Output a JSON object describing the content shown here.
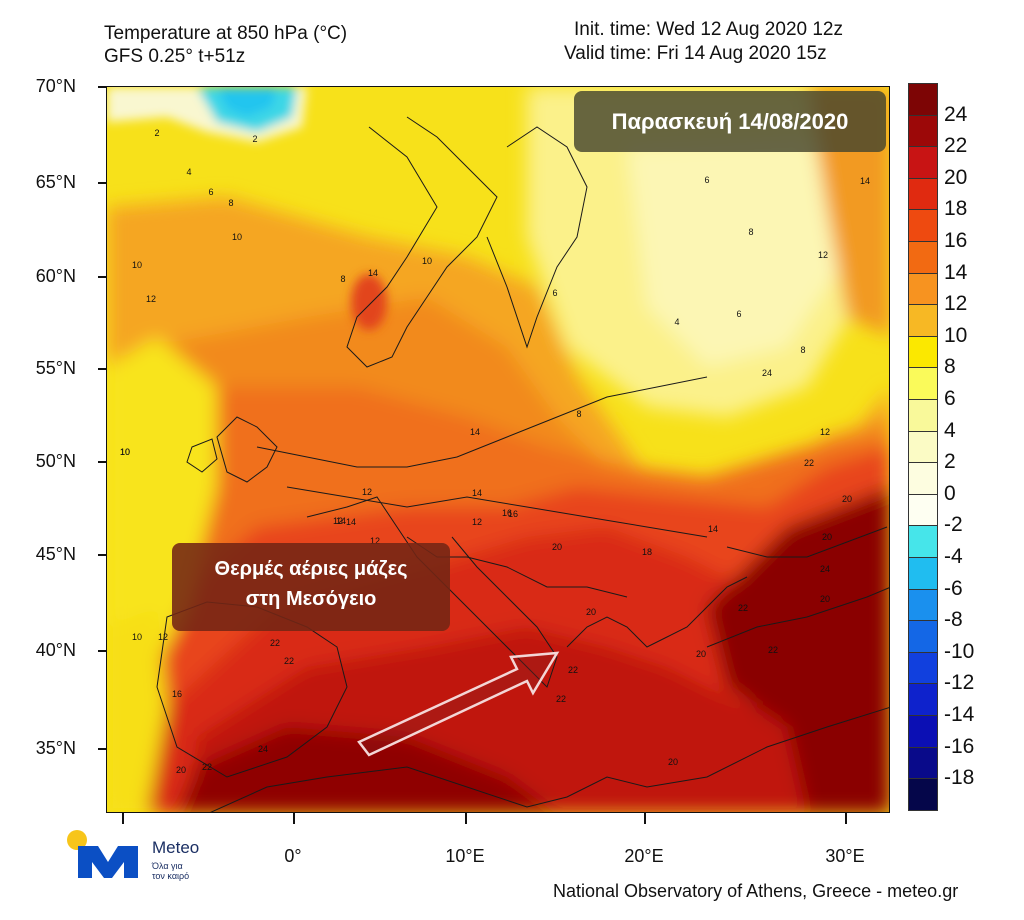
{
  "header": {
    "title": "Temperature at 850 hPa (°C)",
    "model": "GFS 0.25° t+51z",
    "init_time": "Init. time: Wed 12 Aug 2020 12z",
    "valid_time": "Valid time: Fri 14 Aug 2020 15z"
  },
  "map": {
    "date_banner": "Παρασκευή 14/08/2020",
    "callout_line1": "Θερμές αέριες μάζες",
    "callout_line2": "στη Μεσόγειο",
    "lat_labels": [
      "70°N",
      "65°N",
      "60°N",
      "55°N",
      "50°N",
      "45°N",
      "40°N",
      "35°N"
    ],
    "lon_labels": [
      "0°",
      "10°E",
      "20°E",
      "30°E"
    ],
    "contour_labels": [
      "2",
      "2",
      "4",
      "6",
      "8",
      "10",
      "10",
      "12",
      "14",
      "8",
      "10",
      "6",
      "6",
      "8",
      "4",
      "6",
      "8",
      "8",
      "12",
      "14",
      "12",
      "12",
      "14",
      "14",
      "10",
      "14",
      "14",
      "16",
      "12",
      "12",
      "14",
      "16",
      "20",
      "18",
      "20",
      "22",
      "22",
      "20",
      "20",
      "22",
      "24",
      "22",
      "22",
      "22",
      "16",
      "20",
      "24",
      "20",
      "22",
      "20",
      "20",
      "22",
      "24",
      "12",
      "10",
      "10",
      "12"
    ]
  },
  "colorbar": {
    "labels": [
      "24",
      "22",
      "20",
      "18",
      "16",
      "14",
      "12",
      "10",
      "8",
      "6",
      "4",
      "2",
      "0",
      "-2",
      "-4",
      "-6",
      "-8",
      "-10",
      "-12",
      "-14",
      "-16",
      "-18"
    ],
    "colors": [
      "#7d0505",
      "#9c0808",
      "#c81414",
      "#e02a10",
      "#ee4a10",
      "#f26a12",
      "#f79320",
      "#f7b824",
      "#fbe800",
      "#fafa5a",
      "#f9f99a",
      "#fbfbc5",
      "#fdfde0",
      "#fefff2",
      "#46e5ea",
      "#20bdf0",
      "#1a90ee",
      "#1467e6",
      "#1140de",
      "#0e22cc",
      "#0b0fb4",
      "#090a8a",
      "#05064a"
    ]
  },
  "footer": {
    "credit": "National Observatory of Athens, Greece - meteo.gr"
  },
  "logo": {
    "brand": "Meteo",
    "tagline_1": "Όλα για",
    "tagline_2": "τον καιρό"
  }
}
